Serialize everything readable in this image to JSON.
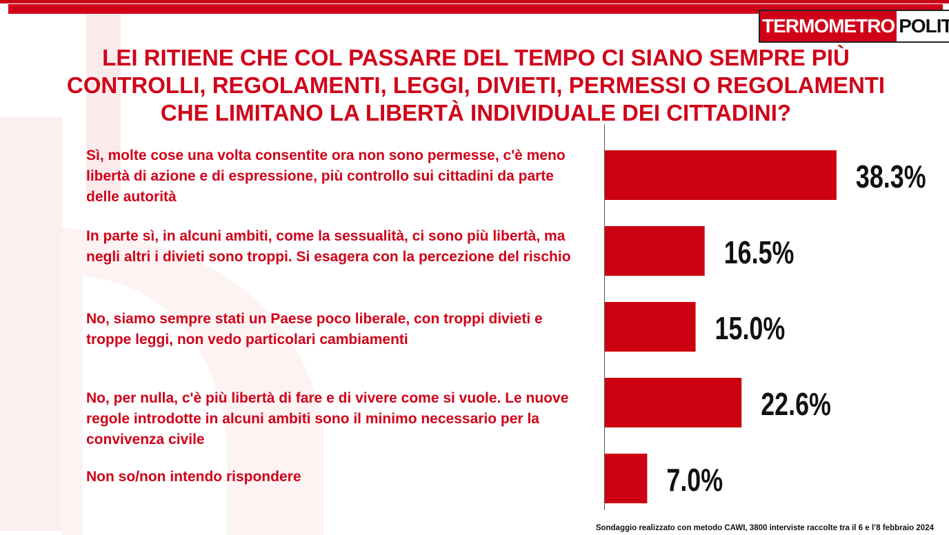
{
  "header": {
    "logo_part1": "TERMOMETRO",
    "logo_part2": "POLITICO"
  },
  "footer_note": "Sondaggio realizzato con metodo CAWI, 3800 interviste raccolte tra il 6 e l’8 febbraio 2024",
  "colors": {
    "brand_red": "#d00018",
    "bar_red": "#cc0011"
  },
  "chart_data": {
    "type": "bar",
    "orientation": "horizontal",
    "title": "LEI RITIENE CHE COL PASSARE DEL TEMPO CI SIANO SEMPRE PIÙ CONTROLLI, REGOLAMENTI, LEGGI, DIVIETI, PERMESSI O REGOLAMENTI CHE LIMITANO LA LIBERTÀ INDIVIDUALE DEI CITTADINI?",
    "categories": [
      "Sì, molte cose una volta consentite ora non sono permesse, c'è meno libertà di azione e di espressione, più controllo sui cittadini da parte delle autorità",
      "In parte sì, in alcuni ambiti, come la sessualità, ci sono più libertà, ma negli altri i divieti sono troppi. Si esagera con la percezione del rischio",
      "No, siamo sempre stati un Paese poco liberale, con troppi divieti e troppe leggi, non vedo particolari cambiamenti",
      "No, per nulla, c'è più libertà di fare e di vivere come si vuole. Le nuove regole introdotte in alcuni ambiti sono il minimo necessario per la convivenza civile",
      "Non so/non intendo rispondere"
    ],
    "values": [
      38.3,
      16.5,
      15.0,
      22.6,
      7.0
    ],
    "value_labels": [
      "38.3%",
      "16.5%",
      "15.0%",
      "22.6%",
      "7.0%"
    ],
    "xlim": [
      0,
      100
    ],
    "grid": false,
    "legend": "none"
  }
}
